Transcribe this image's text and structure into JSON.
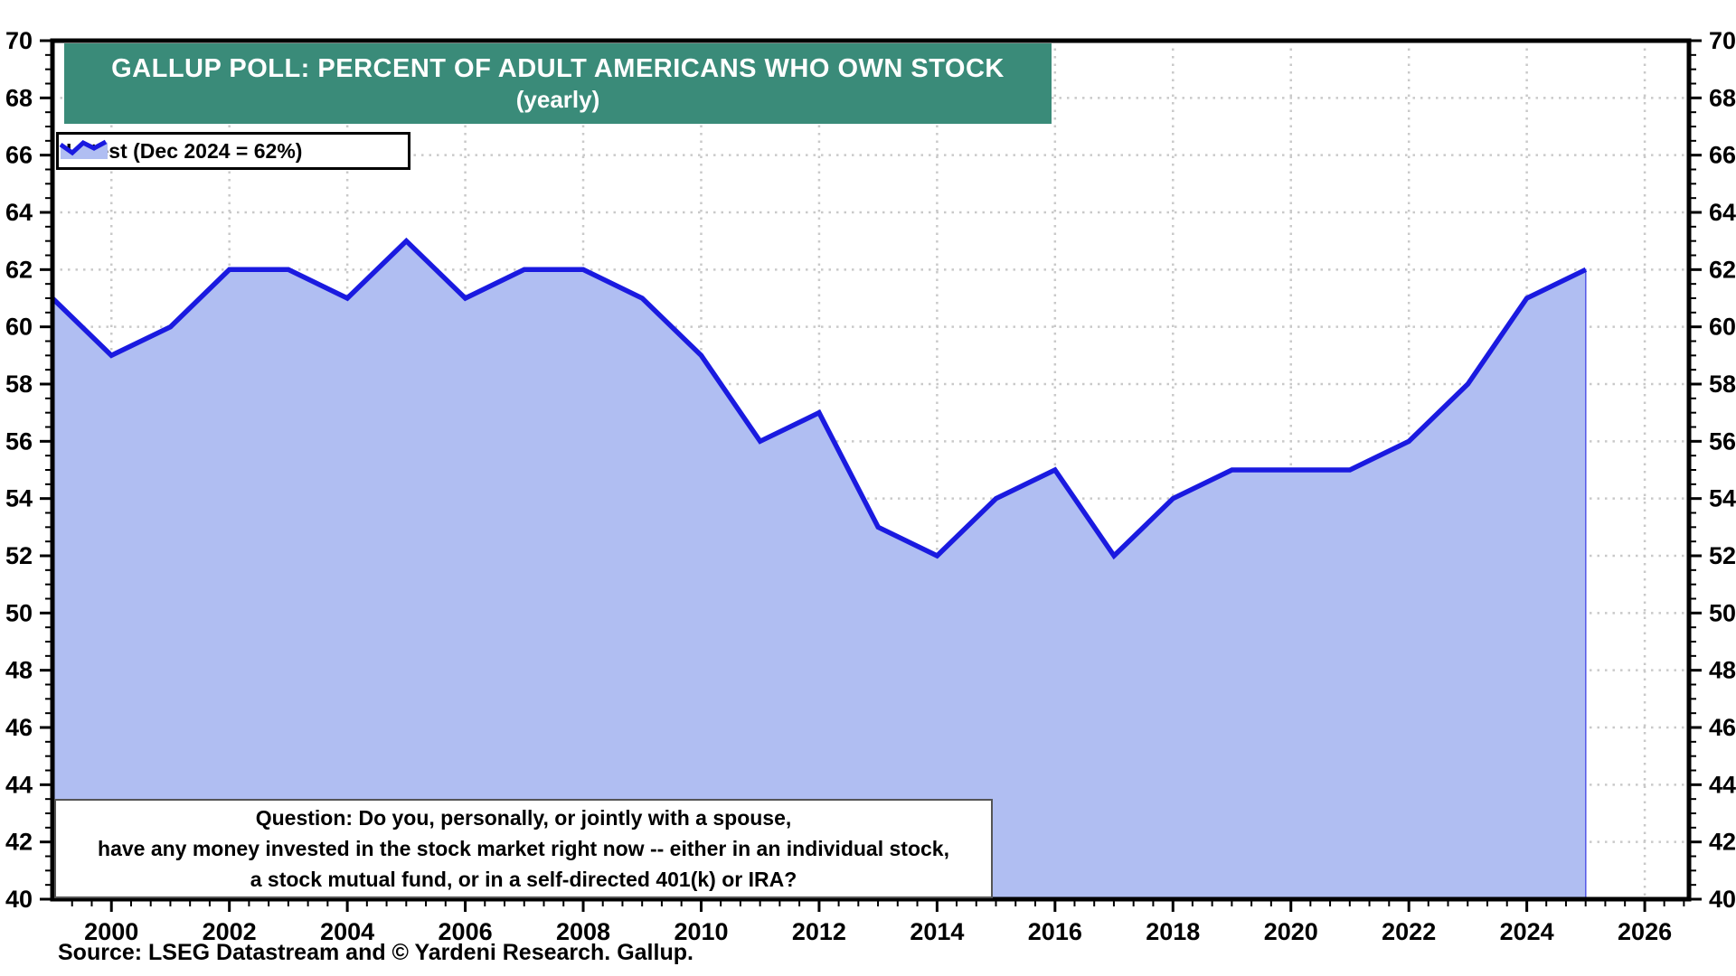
{
  "title": {
    "line1": "GALLUP POLL: PERCENT OF ADULT AMERICANS WHO OWN STOCK",
    "line2": "(yearly)"
  },
  "legend": {
    "label": "Latest (Dec 2024 = 62%)"
  },
  "question_box": {
    "line1": "Question: Do you, personally, or jointly with a spouse,",
    "line2": "have any money invested in the stock market right now -- either in an individual stock,",
    "line3": "a stock mutual fund, or in a self-directed 401(k) or IRA?"
  },
  "source": "Source: LSEG Datastream and © Yardeni Research. Gallup.",
  "colors": {
    "banner_bg": "#3a8b79",
    "banner_text": "#ffffff",
    "line": "#1a1ae0",
    "fill": "#b0bef2",
    "grid": "#c9c9c9",
    "axis": "#000000"
  },
  "chart_data": {
    "type": "area",
    "title": "GALLUP POLL: PERCENT OF ADULT AMERICANS WHO OWN STOCK (yearly)",
    "xlabel": "",
    "ylabel": "Percent of adult Americans who own stock",
    "x": [
      1999,
      2000,
      2001,
      2002,
      2003,
      2004,
      2005,
      2006,
      2007,
      2008,
      2009,
      2010,
      2011,
      2012,
      2013,
      2014,
      2015,
      2016,
      2017,
      2018,
      2019,
      2020,
      2021,
      2022,
      2023,
      2024,
      2025
    ],
    "series": [
      {
        "name": "Latest (Dec 2024 = 62%)",
        "values": [
          61,
          59,
          60,
          62,
          62,
          61,
          63,
          61,
          62,
          62,
          61,
          59,
          56,
          57,
          53,
          52,
          54,
          55,
          52,
          54,
          55,
          55,
          55,
          56,
          58,
          61,
          62
        ]
      }
    ],
    "latest_point": {
      "date": "Dec 2024",
      "value": 62
    },
    "xlim": [
      1999,
      2026.75
    ],
    "ylim": [
      40,
      70
    ],
    "x_ticks": [
      2000,
      2002,
      2004,
      2006,
      2008,
      2010,
      2012,
      2014,
      2016,
      2018,
      2020,
      2022,
      2024,
      2026
    ],
    "y_ticks": [
      40,
      42,
      44,
      46,
      48,
      50,
      52,
      54,
      56,
      58,
      60,
      62,
      64,
      66,
      68,
      70
    ],
    "y_minor_step": 0.5,
    "x_minor_step": 0.3333,
    "grid": "dotted",
    "legend_position": "top-left",
    "y_axis_sides": "both"
  }
}
